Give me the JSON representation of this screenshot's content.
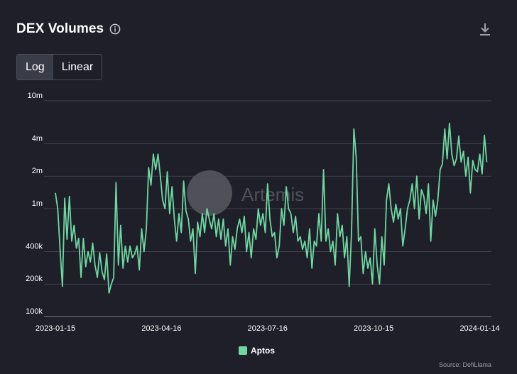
{
  "header": {
    "title": "DEX Volumes",
    "info_icon": "info-icon",
    "download_icon": "download-icon"
  },
  "toggle": {
    "log_label": "Log",
    "linear_label": "Linear",
    "active": "Log"
  },
  "watermark": "Artemis",
  "source": "Source: DefiLlama",
  "colors": {
    "series": "#6fd8a2",
    "background": "#1e1f29",
    "grid": "#4a4c58",
    "text": "#ffffff"
  },
  "chart_data": {
    "type": "line",
    "title": "DEX Volumes",
    "yscale": "log",
    "ylim": [
      100000,
      10000000
    ],
    "xlim": [
      "2023-01-15",
      "2024-01-24"
    ],
    "grid": true,
    "legend_position": "bottom-center",
    "y_ticks": [
      {
        "value": 10000000,
        "label": "10m"
      },
      {
        "value": 4000000,
        "label": "4m"
      },
      {
        "value": 2000000,
        "label": "2m"
      },
      {
        "value": 1000000,
        "label": "1m"
      },
      {
        "value": 400000,
        "label": "400k"
      },
      {
        "value": 200000,
        "label": "200k"
      },
      {
        "value": 100000,
        "label": "100k"
      }
    ],
    "x_ticks": [
      "2023-01-15",
      "2023-04-16",
      "2023-07-16",
      "2023-10-15",
      "2024-01-14"
    ],
    "series": [
      {
        "name": "Aptos",
        "points": [
          [
            "2023-01-15",
            1400000
          ],
          [
            "2023-01-17",
            1000000
          ],
          [
            "2023-01-19",
            420000
          ],
          [
            "2023-01-21",
            190000
          ],
          [
            "2023-01-23",
            1250000
          ],
          [
            "2023-01-25",
            520000
          ],
          [
            "2023-01-27",
            1300000
          ],
          [
            "2023-01-29",
            500000
          ],
          [
            "2023-01-31",
            700000
          ],
          [
            "2023-02-02",
            430000
          ],
          [
            "2023-02-04",
            530000
          ],
          [
            "2023-02-06",
            230000
          ],
          [
            "2023-02-08",
            530000
          ],
          [
            "2023-02-10",
            290000
          ],
          [
            "2023-02-12",
            400000
          ],
          [
            "2023-02-14",
            320000
          ],
          [
            "2023-02-16",
            480000
          ],
          [
            "2023-02-18",
            300000
          ],
          [
            "2023-02-20",
            230000
          ],
          [
            "2023-02-22",
            390000
          ],
          [
            "2023-02-24",
            260000
          ],
          [
            "2023-02-26",
            220000
          ],
          [
            "2023-02-28",
            380000
          ],
          [
            "2023-03-02",
            165000
          ],
          [
            "2023-03-04",
            200000
          ],
          [
            "2023-03-06",
            230000
          ],
          [
            "2023-03-08",
            1750000
          ],
          [
            "2023-03-10",
            300000
          ],
          [
            "2023-03-12",
            700000
          ],
          [
            "2023-03-14",
            280000
          ],
          [
            "2023-03-16",
            450000
          ],
          [
            "2023-03-18",
            320000
          ],
          [
            "2023-03-20",
            450000
          ],
          [
            "2023-03-22",
            350000
          ],
          [
            "2023-03-24",
            380000
          ],
          [
            "2023-03-26",
            450000
          ],
          [
            "2023-03-28",
            270000
          ],
          [
            "2023-03-30",
            650000
          ],
          [
            "2023-04-01",
            400000
          ],
          [
            "2023-04-03",
            650000
          ],
          [
            "2023-04-05",
            2400000
          ],
          [
            "2023-04-07",
            1650000
          ],
          [
            "2023-04-09",
            3200000
          ],
          [
            "2023-04-11",
            2300000
          ],
          [
            "2023-04-13",
            3200000
          ],
          [
            "2023-04-15",
            2000000
          ],
          [
            "2023-04-17",
            1200000
          ],
          [
            "2023-04-19",
            1000000
          ],
          [
            "2023-04-21",
            2200000
          ],
          [
            "2023-04-23",
            900000
          ],
          [
            "2023-04-25",
            1600000
          ],
          [
            "2023-04-27",
            800000
          ],
          [
            "2023-04-29",
            500000
          ],
          [
            "2023-05-01",
            900000
          ],
          [
            "2023-05-03",
            600000
          ],
          [
            "2023-05-05",
            1800000
          ],
          [
            "2023-05-07",
            950000
          ],
          [
            "2023-05-09",
            800000
          ],
          [
            "2023-05-11",
            500000
          ],
          [
            "2023-05-13",
            650000
          ],
          [
            "2023-05-15",
            250000
          ],
          [
            "2023-05-17",
            750000
          ],
          [
            "2023-05-19",
            550000
          ],
          [
            "2023-05-21",
            900000
          ],
          [
            "2023-05-23",
            600000
          ],
          [
            "2023-05-25",
            1000000
          ],
          [
            "2023-05-27",
            800000
          ],
          [
            "2023-05-29",
            650000
          ],
          [
            "2023-05-31",
            900000
          ],
          [
            "2023-06-02",
            550000
          ],
          [
            "2023-06-04",
            800000
          ],
          [
            "2023-06-06",
            520000
          ],
          [
            "2023-06-08",
            800000
          ],
          [
            "2023-06-10",
            450000
          ],
          [
            "2023-06-12",
            650000
          ],
          [
            "2023-06-14",
            300000
          ],
          [
            "2023-06-16",
            550000
          ],
          [
            "2023-06-18",
            420000
          ],
          [
            "2023-06-20",
            650000
          ],
          [
            "2023-06-22",
            800000
          ],
          [
            "2023-06-24",
            600000
          ],
          [
            "2023-06-26",
            850000
          ],
          [
            "2023-06-28",
            400000
          ],
          [
            "2023-06-30",
            600000
          ],
          [
            "2023-07-02",
            350000
          ],
          [
            "2023-07-04",
            650000
          ],
          [
            "2023-07-06",
            520000
          ],
          [
            "2023-07-08",
            1000000
          ],
          [
            "2023-07-10",
            700000
          ],
          [
            "2023-07-12",
            900000
          ],
          [
            "2023-07-14",
            600000
          ],
          [
            "2023-07-16",
            1700000
          ],
          [
            "2023-07-18",
            800000
          ],
          [
            "2023-07-20",
            550000
          ],
          [
            "2023-07-22",
            600000
          ],
          [
            "2023-07-24",
            350000
          ],
          [
            "2023-07-26",
            450000
          ],
          [
            "2023-07-28",
            1000000
          ],
          [
            "2023-07-30",
            700000
          ],
          [
            "2023-08-01",
            1600000
          ],
          [
            "2023-08-03",
            1000000
          ],
          [
            "2023-08-05",
            900000
          ],
          [
            "2023-08-07",
            600000
          ],
          [
            "2023-08-09",
            850000
          ],
          [
            "2023-08-11",
            500000
          ],
          [
            "2023-08-13",
            550000
          ],
          [
            "2023-08-15",
            420000
          ],
          [
            "2023-08-17",
            500000
          ],
          [
            "2023-08-19",
            350000
          ],
          [
            "2023-08-21",
            650000
          ],
          [
            "2023-08-23",
            280000
          ],
          [
            "2023-08-25",
            500000
          ],
          [
            "2023-08-27",
            450000
          ],
          [
            "2023-08-29",
            900000
          ],
          [
            "2023-08-31",
            500000
          ],
          [
            "2023-09-02",
            2300000
          ],
          [
            "2023-09-04",
            500000
          ],
          [
            "2023-09-06",
            650000
          ],
          [
            "2023-09-08",
            400000
          ],
          [
            "2023-09-10",
            500000
          ],
          [
            "2023-09-12",
            300000
          ],
          [
            "2023-09-14",
            900000
          ],
          [
            "2023-09-16",
            550000
          ],
          [
            "2023-09-18",
            700000
          ],
          [
            "2023-09-20",
            350000
          ],
          [
            "2023-09-22",
            550000
          ],
          [
            "2023-09-24",
            190000
          ],
          [
            "2023-09-26",
            600000
          ],
          [
            "2023-09-28",
            5500000
          ],
          [
            "2023-09-30",
            3000000
          ],
          [
            "2023-10-02",
            500000
          ],
          [
            "2023-10-04",
            550000
          ],
          [
            "2023-10-06",
            250000
          ],
          [
            "2023-10-08",
            400000
          ],
          [
            "2023-10-10",
            280000
          ],
          [
            "2023-10-12",
            350000
          ],
          [
            "2023-10-14",
            200000
          ],
          [
            "2023-10-16",
            650000
          ],
          [
            "2023-10-18",
            300000
          ],
          [
            "2023-10-20",
            200000
          ],
          [
            "2023-10-22",
            550000
          ],
          [
            "2023-10-24",
            300000
          ],
          [
            "2023-10-26",
            1200000
          ],
          [
            "2023-10-28",
            1700000
          ],
          [
            "2023-10-30",
            1000000
          ],
          [
            "2023-11-01",
            750000
          ],
          [
            "2023-11-03",
            1100000
          ],
          [
            "2023-11-05",
            800000
          ],
          [
            "2023-11-07",
            1000000
          ],
          [
            "2023-11-09",
            450000
          ],
          [
            "2023-11-11",
            650000
          ],
          [
            "2023-11-13",
            1000000
          ],
          [
            "2023-11-15",
            1200000
          ],
          [
            "2023-11-17",
            1700000
          ],
          [
            "2023-11-19",
            1000000
          ],
          [
            "2023-11-21",
            2000000
          ],
          [
            "2023-11-23",
            800000
          ],
          [
            "2023-11-25",
            1500000
          ],
          [
            "2023-11-27",
            1300000
          ],
          [
            "2023-11-29",
            900000
          ],
          [
            "2023-12-01",
            1700000
          ],
          [
            "2023-12-03",
            500000
          ],
          [
            "2023-12-05",
            1200000
          ],
          [
            "2023-12-07",
            850000
          ],
          [
            "2023-12-09",
            1200000
          ],
          [
            "2023-12-11",
            2300000
          ],
          [
            "2023-12-13",
            2600000
          ],
          [
            "2023-12-15",
            5500000
          ],
          [
            "2023-12-17",
            2900000
          ],
          [
            "2023-12-19",
            6200000
          ],
          [
            "2023-12-21",
            3200000
          ],
          [
            "2023-12-23",
            2500000
          ],
          [
            "2023-12-25",
            2900000
          ],
          [
            "2023-12-27",
            4700000
          ],
          [
            "2023-12-29",
            2700000
          ],
          [
            "2023-12-31",
            3400000
          ],
          [
            "2024-01-02",
            2000000
          ],
          [
            "2024-01-04",
            3000000
          ],
          [
            "2024-01-06",
            1400000
          ],
          [
            "2024-01-08",
            2800000
          ],
          [
            "2024-01-10",
            2300000
          ],
          [
            "2024-01-12",
            2200000
          ],
          [
            "2024-01-14",
            3200000
          ],
          [
            "2024-01-16",
            2100000
          ],
          [
            "2024-01-18",
            4800000
          ],
          [
            "2024-01-20",
            2700000
          ]
        ]
      }
    ]
  }
}
